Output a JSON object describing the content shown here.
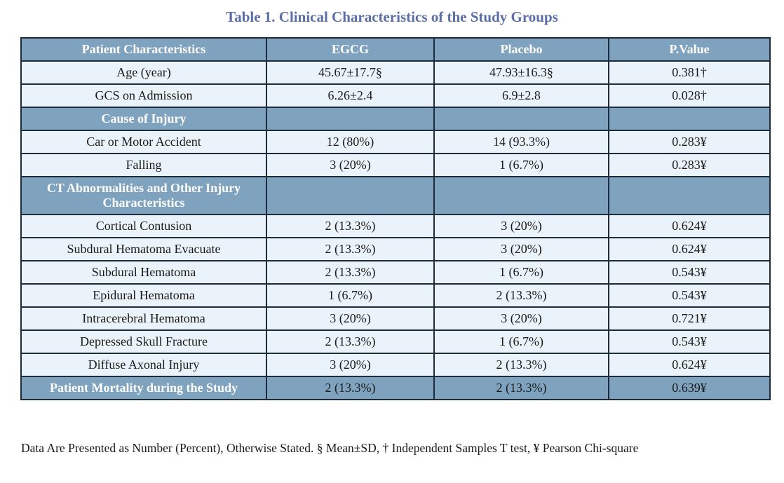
{
  "title": "Table 1. Clinical Characteristics of the Study Groups",
  "table": {
    "headers": [
      "Patient Characteristics",
      "EGCG",
      "Placebo",
      "P.Value"
    ],
    "rows": [
      {
        "type": "data",
        "cells": [
          "Age (year)",
          "45.67±17.7§",
          "47.93±16.3§",
          "0.381†"
        ]
      },
      {
        "type": "data",
        "cells": [
          "GCS on Admission",
          "6.26±2.4",
          "6.9±2.8",
          "0.028†"
        ]
      },
      {
        "type": "section",
        "cells": [
          "Cause of Injury",
          "",
          "",
          ""
        ]
      },
      {
        "type": "data",
        "cells": [
          "Car or Motor Accident",
          "12 (80%)",
          "14 (93.3%)",
          "0.283¥"
        ]
      },
      {
        "type": "data",
        "cells": [
          "Falling",
          "3 (20%)",
          "1 (6.7%)",
          "0.283¥"
        ]
      },
      {
        "type": "section",
        "cells": [
          "CT Abnormalities and Other Injury Characteristics",
          "",
          "",
          ""
        ]
      },
      {
        "type": "data",
        "cells": [
          "Cortical Contusion",
          "2 (13.3%)",
          "3 (20%)",
          "0.624¥"
        ]
      },
      {
        "type": "data",
        "cells": [
          "Subdural Hematoma Evacuate",
          "2 (13.3%)",
          "3 (20%)",
          "0.624¥"
        ]
      },
      {
        "type": "data",
        "cells": [
          "Subdural Hematoma",
          "2 (13.3%)",
          "1 (6.7%)",
          "0.543¥"
        ]
      },
      {
        "type": "data",
        "cells": [
          "Epidural Hematoma",
          "1 (6.7%)",
          "2 (13.3%)",
          "0.543¥"
        ]
      },
      {
        "type": "data",
        "cells": [
          "Intracerebral Hematoma",
          "3 (20%)",
          "3 (20%)",
          "0.721¥"
        ]
      },
      {
        "type": "data",
        "cells": [
          "Depressed Skull Fracture",
          "2 (13.3%)",
          "1 (6.7%)",
          "0.543¥"
        ]
      },
      {
        "type": "data",
        "cells": [
          "Diffuse Axonal Injury",
          "3 (20%)",
          "2 (13.3%)",
          "0.624¥"
        ]
      },
      {
        "type": "mortality",
        "cells": [
          "Patient Mortality during the Study",
          "2 (13.3%)",
          "2 (13.3%)",
          "0.639¥"
        ]
      }
    ]
  },
  "footnote": "Data Are Presented as Number (Percent), Otherwise Stated. § Mean±SD, † Independent Samples T test, ¥ Pearson Chi-square",
  "colors": {
    "title": "#5a6ea8",
    "header_bg": "#7fa3bf",
    "row_bg": "#eaf3f9",
    "border": "#1d2c3a"
  }
}
